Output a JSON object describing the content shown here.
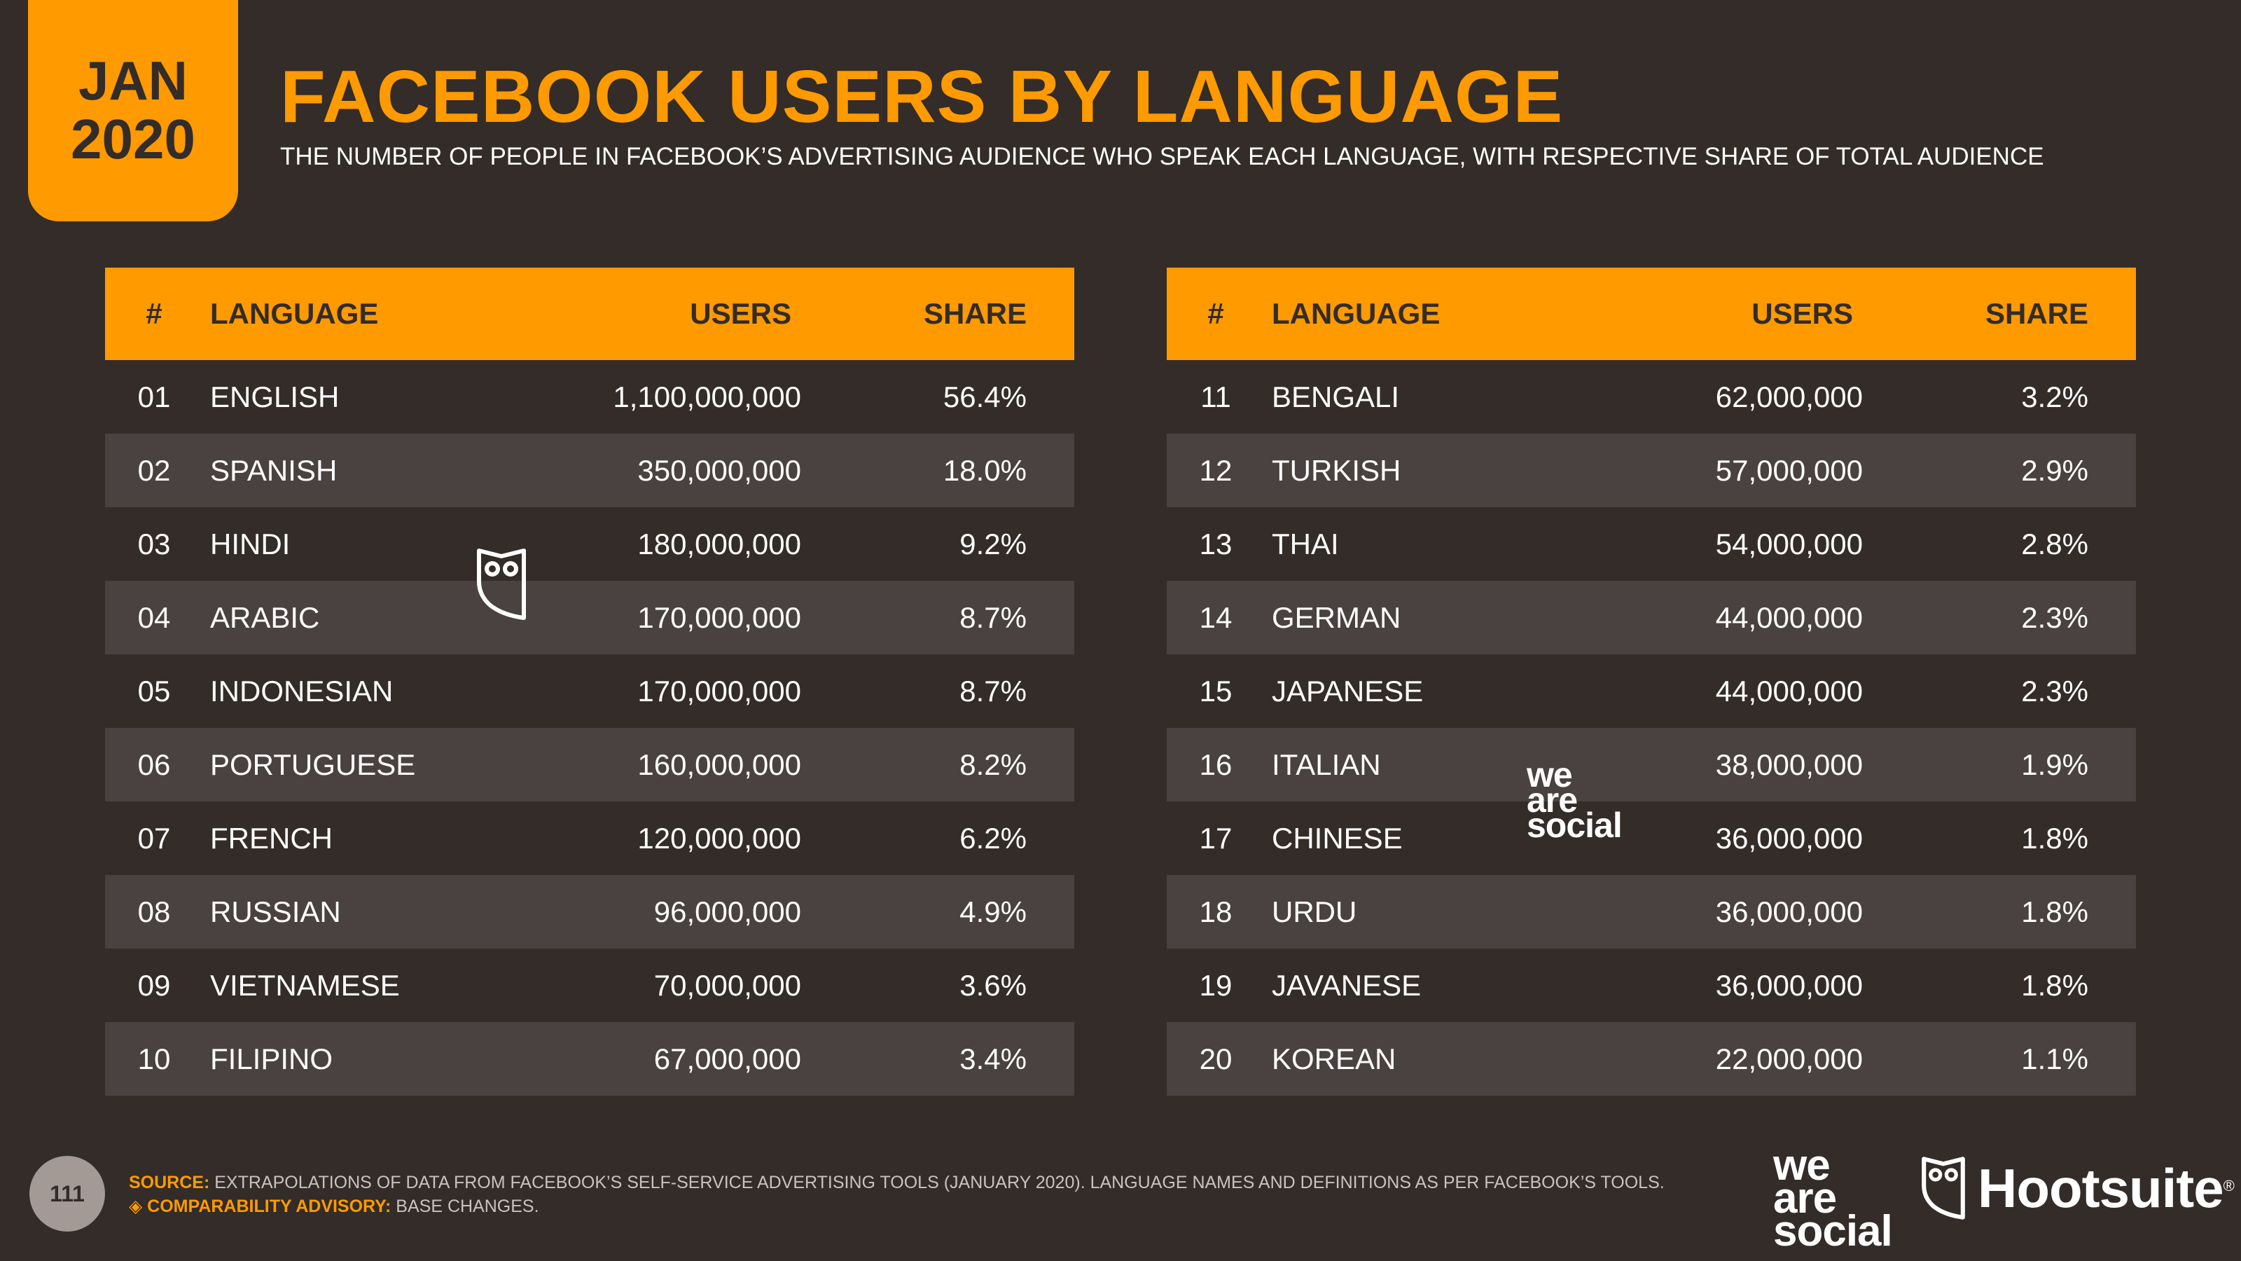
{
  "header": {
    "badge_month": "JAN",
    "badge_year": "2020",
    "title": "FACEBOOK USERS BY LANGUAGE",
    "subtitle": "THE NUMBER OF PEOPLE IN FACEBOOK’S ADVERTISING AUDIENCE WHO SPEAK EACH LANGUAGE, WITH RESPECTIVE SHARE OF TOTAL AUDIENCE"
  },
  "columns": {
    "num": "#",
    "language": "LANGUAGE",
    "users": "USERS",
    "share": "SHARE"
  },
  "colors": {
    "accent": "#ff9a00",
    "background": "#332c28",
    "row_alt": "#4a4240",
    "text": "#ffffff"
  },
  "chart_data": {
    "type": "table",
    "title": "FACEBOOK USERS BY LANGUAGE",
    "columns": [
      "#",
      "LANGUAGE",
      "USERS",
      "SHARE"
    ],
    "rows": [
      {
        "num": "01",
        "language": "ENGLISH",
        "users": "1,100,000,000",
        "share": "56.4%"
      },
      {
        "num": "02",
        "language": "SPANISH",
        "users": "350,000,000",
        "share": "18.0%"
      },
      {
        "num": "03",
        "language": "HINDI",
        "users": "180,000,000",
        "share": "9.2%"
      },
      {
        "num": "04",
        "language": "ARABIC",
        "users": "170,000,000",
        "share": "8.7%"
      },
      {
        "num": "05",
        "language": "INDONESIAN",
        "users": "170,000,000",
        "share": "8.7%"
      },
      {
        "num": "06",
        "language": "PORTUGUESE",
        "users": "160,000,000",
        "share": "8.2%"
      },
      {
        "num": "07",
        "language": "FRENCH",
        "users": "120,000,000",
        "share": "6.2%"
      },
      {
        "num": "08",
        "language": "RUSSIAN",
        "users": "96,000,000",
        "share": "4.9%"
      },
      {
        "num": "09",
        "language": "VIETNAMESE",
        "users": "70,000,000",
        "share": "3.6%"
      },
      {
        "num": "10",
        "language": "FILIPINO",
        "users": "67,000,000",
        "share": "3.4%"
      },
      {
        "num": "11",
        "language": "BENGALI",
        "users": "62,000,000",
        "share": "3.2%"
      },
      {
        "num": "12",
        "language": "TURKISH",
        "users": "57,000,000",
        "share": "2.9%"
      },
      {
        "num": "13",
        "language": "THAI",
        "users": "54,000,000",
        "share": "2.8%"
      },
      {
        "num": "14",
        "language": "GERMAN",
        "users": "44,000,000",
        "share": "2.3%"
      },
      {
        "num": "15",
        "language": "JAPANESE",
        "users": "44,000,000",
        "share": "2.3%"
      },
      {
        "num": "16",
        "language": "ITALIAN",
        "users": "38,000,000",
        "share": "1.9%"
      },
      {
        "num": "17",
        "language": "CHINESE",
        "users": "36,000,000",
        "share": "1.8%"
      },
      {
        "num": "18",
        "language": "URDU",
        "users": "36,000,000",
        "share": "1.8%"
      },
      {
        "num": "19",
        "language": "JAVANESE",
        "users": "36,000,000",
        "share": "1.8%"
      },
      {
        "num": "20",
        "language": "KOREAN",
        "users": "22,000,000",
        "share": "1.1%"
      }
    ]
  },
  "footer": {
    "page_number": "111",
    "source_label": "SOURCE:",
    "source_text": "EXTRAPOLATIONS OF DATA FROM FACEBOOK’S SELF-SERVICE ADVERTISING TOOLS (JANUARY 2020). LANGUAGE NAMES AND DEFINITIONS AS PER FACEBOOK’S TOOLS.",
    "advisory_label": "◈ COMPARABILITY ADVISORY:",
    "advisory_text": "BASE CHANGES.",
    "logo_was_1": "we",
    "logo_was_2": "are",
    "logo_was_3": "social",
    "logo_hootsuite": "Hootsuite",
    "logo_reg": "®"
  }
}
